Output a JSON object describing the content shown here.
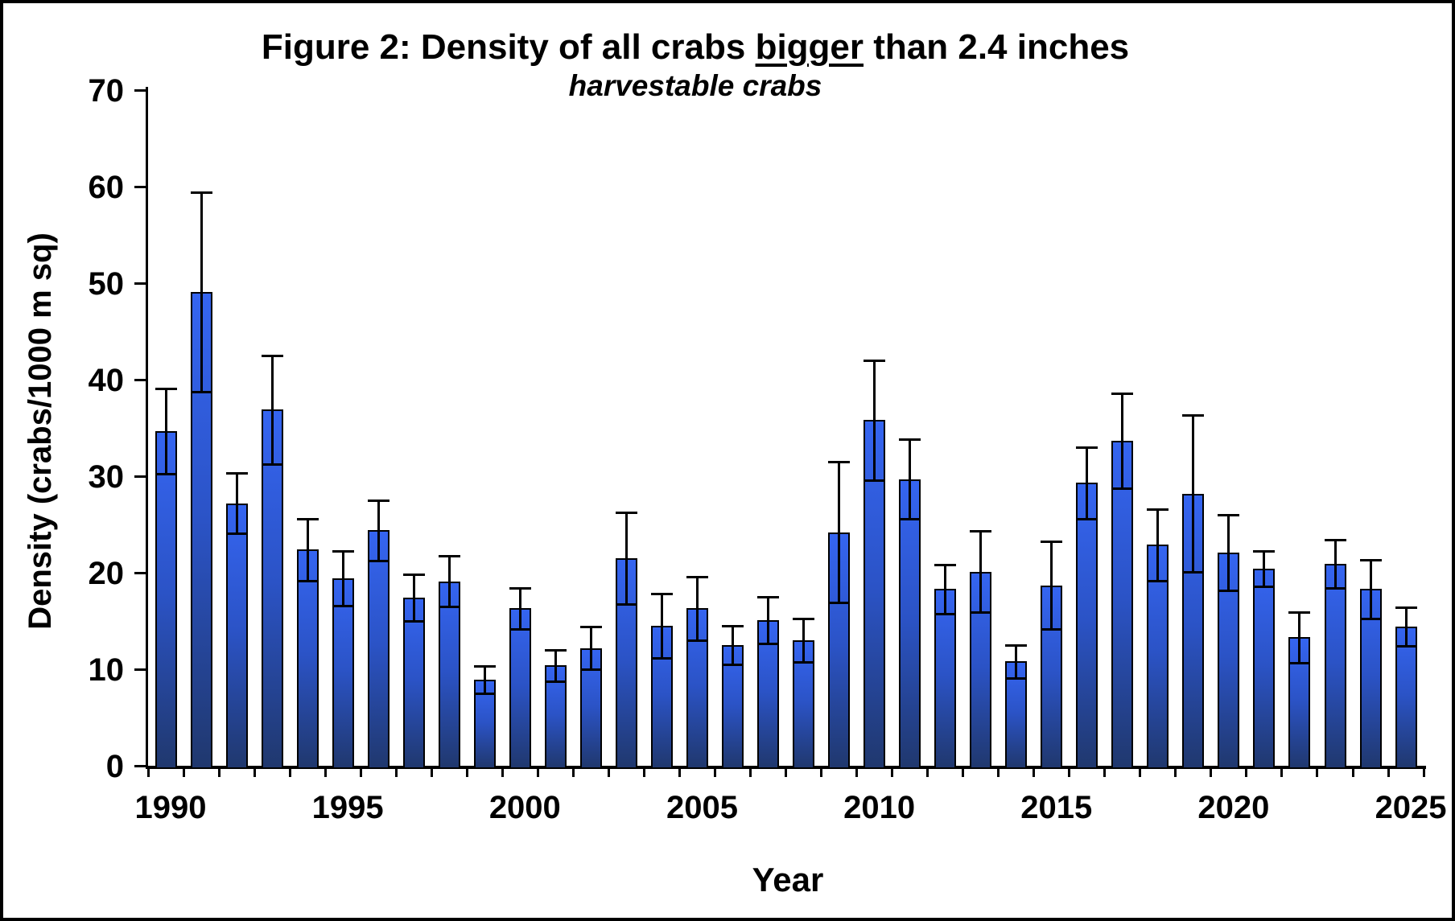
{
  "title": {
    "prefix": "Figure 2: Density of all crabs ",
    "underlined_word": "bigger",
    "suffix": " than 2.4 inches",
    "subtitle": "harvestable crabs"
  },
  "chart_data": {
    "type": "bar",
    "title": "Figure 2: Density of all crabs bigger than 2.4 inches",
    "subtitle": "harvestable crabs",
    "xlabel": "Year",
    "ylabel": "Density (crabs/1000 m sq)",
    "ylim": [
      0,
      70
    ],
    "yticks": [
      0,
      10,
      20,
      30,
      40,
      50,
      60,
      70
    ],
    "xtick_label_years": [
      1990,
      1995,
      2000,
      2005,
      2010,
      2015,
      2020,
      2025
    ],
    "grid": "off",
    "legend": "none",
    "error_bar_style": "symmetric, capped",
    "categories": [
      1990,
      1991,
      1992,
      1993,
      1994,
      1995,
      1996,
      1997,
      1998,
      1999,
      2000,
      2001,
      2002,
      2003,
      2004,
      2005,
      2006,
      2007,
      2008,
      2009,
      2010,
      2011,
      2012,
      2013,
      2014,
      2015,
      2016,
      2017,
      2018,
      2019,
      2020,
      2021,
      2022,
      2023,
      2024,
      2025
    ],
    "values": [
      34.7,
      49.1,
      27.2,
      36.9,
      22.4,
      19.4,
      24.4,
      17.4,
      19.1,
      8.9,
      16.3,
      10.4,
      12.2,
      21.5,
      14.5,
      16.3,
      12.5,
      15.1,
      13.0,
      24.2,
      35.8,
      29.7,
      18.3,
      20.1,
      10.8,
      18.7,
      29.3,
      33.7,
      22.9,
      28.2,
      22.1,
      20.4,
      13.3,
      20.9,
      18.3,
      14.4
    ],
    "errors": [
      4.5,
      10.4,
      3.2,
      5.7,
      3.3,
      2.9,
      3.2,
      2.5,
      2.7,
      1.5,
      2.2,
      1.7,
      2.3,
      4.8,
      3.4,
      3.4,
      2.1,
      2.5,
      2.3,
      7.4,
      6.3,
      4.2,
      2.6,
      4.3,
      1.8,
      4.6,
      3.8,
      5.0,
      3.8,
      8.2,
      4.0,
      1.9,
      2.7,
      2.6,
      3.1,
      2.1
    ],
    "bar_color_top": "#3565f1",
    "bar_color_bottom": "#20386e",
    "bar_outline_color": "#000000",
    "error_bar_color": "#000000",
    "background_color": "#ffffff",
    "frame_border_color": "#000000"
  }
}
